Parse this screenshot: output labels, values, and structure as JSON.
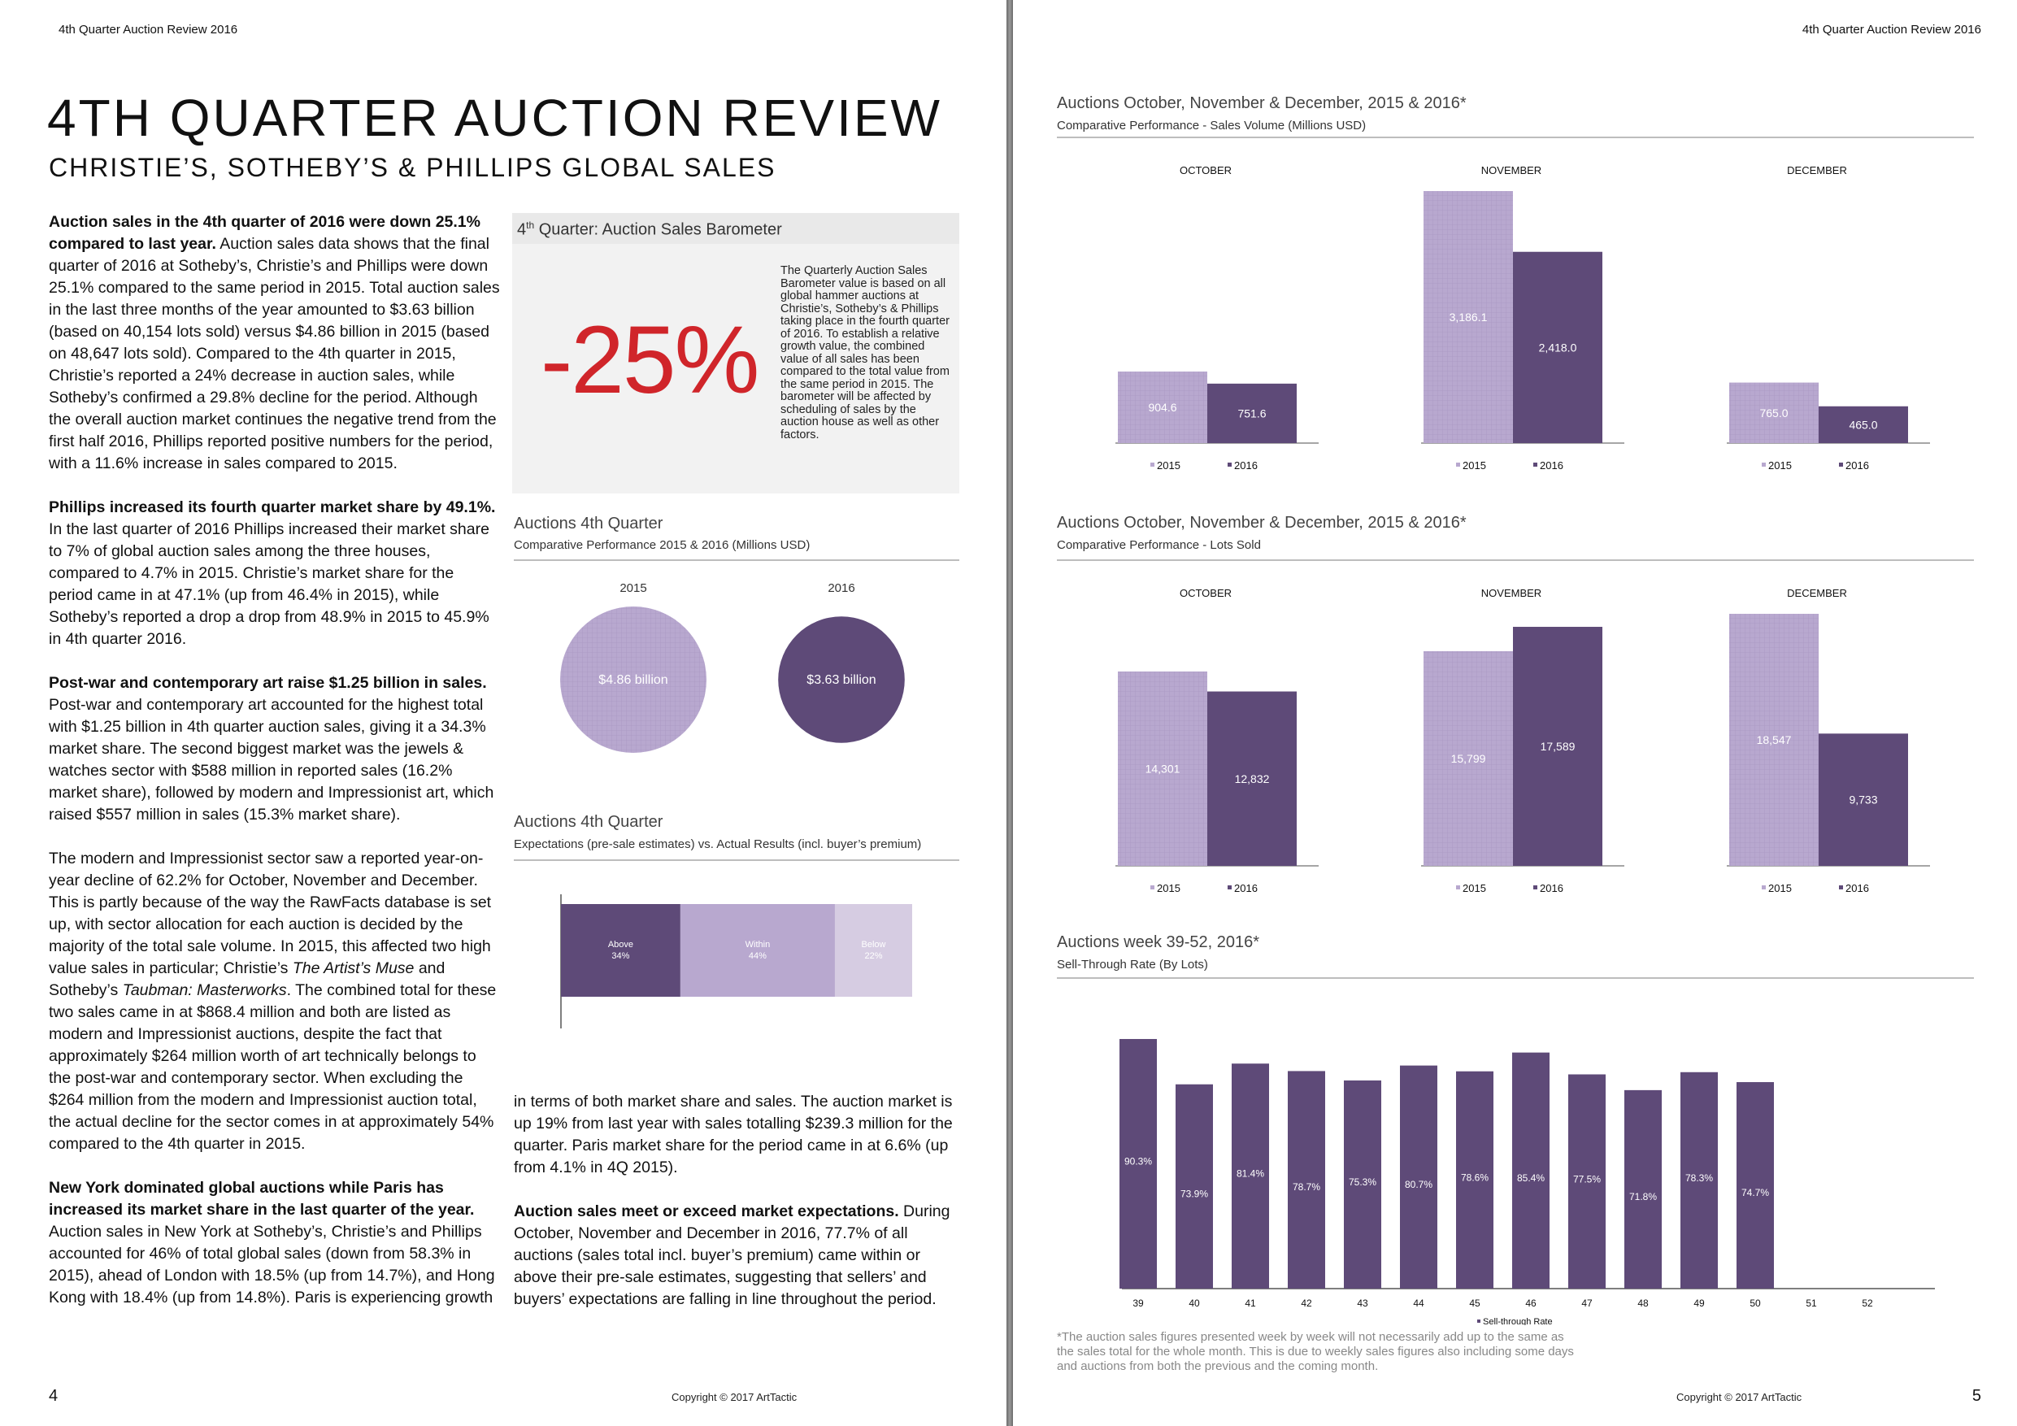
{
  "left": {
    "header": "4th Quarter Auction Review 2016",
    "title": "4TH QUARTER AUCTION REVIEW",
    "subtitle": "CHRISTIE’S, SOTHEBY’S & PHILLIPS GLOBAL SALES",
    "para1_bold": "Auction sales in the 4th quarter of 2016 were down 25.1% compared to last year.",
    "para1_text": " Auction sales data shows that the final quarter of 2016 at Sotheby’s, Christie’s and Phillips were down 25.1% compared to the same period in 2015. Total auction sales in the last three months of the year amounted to $3.63 billion (based on 40,154 lots sold) versus $4.86 billion in 2015 (based on 48,647 lots sold). Compared to the 4th quarter in 2015, Christie’s reported a 24% decrease in auction sales, while Sotheby’s confirmed a 29.8% decline for the period. Although the overall auction market continues the negative trend from the first half 2016, Phillips reported positive numbers for the period, with a 11.6% increase in sales compared to 2015.",
    "para2_bold": "Phillips increased its fourth quarter market share by 49.1%.",
    "para2_text": "In the last quarter of 2016 Phillips increased their market share to 7% of global auction sales among the three houses, compared to 4.7% in 2015. Christie’s market share for the period came in at 47.1% (up from 46.4% in 2015), while Sotheby’s reported a drop a drop from 48.9% in 2015 to 45.9% in 4th quarter 2016.",
    "para3_bold": "Post-war and contemporary art raise $1.25 billion in sales.",
    "para3_text": "Post-war and contemporary art accounted for the highest total with $1.25 billion in 4th quarter auction sales, giving it a 34.3% market share. The second biggest market was the jewels & watches sector with $588 million in reported sales (16.2% market share), followed by modern and Impressionist art, which raised $557 million in sales (15.3% market share).",
    "para4_a": "The modern and Impressionist sector saw a reported year-on-year decline of 62.2% for October, November and December. This is partly because of the way the RawFacts database is set up, with sector allocation for each auction is decided by the majority of the total sale volume. In 2015, this affected two high value sales in particular; Christie’s ",
    "para4_i1": "The Artist’s Muse",
    "para4_b": " and Sotheby’s ",
    "para4_i2": "Taubman: Masterworks",
    "para4_c": ". The combined total for these two sales came in at $868.4 million and both are listed as modern and Impressionist auctions, despite the fact that approximately $264 million worth of art technically belongs to the post-war and contemporary sector. When excluding the $264 million from the modern and Impressionist auction total, the actual decline for the sector comes in at approximately 54% compared to the 4th quarter in 2015.",
    "para5_bold": "New York dominated global auctions while Paris has increased its market share in the last quarter of the year.",
    "para5_text": " Auction sales in New York at Sotheby’s, Christie’s and Phillips accounted for 46% of total global sales (down from 58.3% in 2015), ahead of London with 18.5% (up from 14.7%), and Hong Kong with 18.4% (up from 14.8%). Paris is experiencing growth",
    "mid_para1": "in terms of both market share and sales. The auction market is up 19% from last year with sales totalling $239.3 million for the quarter. Paris market share for the period came in at 6.6% (up from 4.1% in 4Q 2015).",
    "mid_para2_bold": "Auction sales meet or exceed market expectations.",
    "mid_para2_text": " During October, November and December in 2016, 77.7% of all auctions (sales total incl. buyer’s premium) came within or above their pre-sale estimates, suggesting that sellers’ and buyers’ expectations are falling in line throughout the period.",
    "barometer": {
      "title_pre": "4",
      "title_sup": "th",
      "title_post": " Quarter: Auction Sales Barometer",
      "value": "-25%",
      "description": "The Quarterly Auction Sales Barometer value is based on all global hammer auctions at Christie’s, Sotheby’s & Phillips taking place in the fourth quarter of 2016. To establish a relative growth value, the combined value of all sales has been compared to the total value from the same period in 2015. The barometer will be affected by scheduling of sales by the auction house as well as other factors."
    },
    "circles": {
      "title": "Auctions 4th Quarter",
      "subtitle": "Comparative Performance 2015 & 2016 (Millions USD)",
      "items": [
        {
          "year": "2015",
          "label": "$4.86 billion",
          "value": 4860
        },
        {
          "year": "2016",
          "label": "$3.63 billion",
          "value": 3630
        }
      ]
    },
    "expectations": {
      "title": "Auctions 4th Quarter",
      "subtitle": "Expectations (pre-sale estimates) vs. Actual Results (incl. buyer’s premium)",
      "segments": [
        {
          "name": "Above",
          "pct_label": "34%",
          "value": 34
        },
        {
          "name": "Within",
          "pct_label": "44%",
          "value": 44
        },
        {
          "name": "Below",
          "pct_label": "22%",
          "value": 22
        }
      ]
    },
    "page_number": "4",
    "copyright": "Copyright © 2017 ArtTactic"
  },
  "right": {
    "header": "4th Quarter Auction Review 2016",
    "sales_title": "Auctions October, November & December, 2015 & 2016*",
    "sales_subtitle": "Comparative Performance - Sales Volume (Millions USD)",
    "lots_title": "Auctions October, November & December, 2015 & 2016*",
    "lots_subtitle": "Comparative Performance - Lots Sold",
    "week_title": "Auctions week 39-52, 2016*",
    "week_subtitle": "Sell-Through Rate (By Lots)",
    "week_legend": "Sell-through Rate",
    "footnote": "*The auction sales figures presented week by week will not necessarily add up to the same as the sales total for the whole month. This is due to weekly sales figures also including some days and auctions from both the previous and the coming month.",
    "page_number": "5",
    "copyright": "Copyright © 2017 ArtTactic"
  },
  "colors": {
    "light": "#b8a8cf",
    "dark": "#5e4a78",
    "lighter": "#d6cce2",
    "red": "#d0252a"
  },
  "chart_data": [
    {
      "type": "bar",
      "title": "Auctions October, November & December, 2015 & 2016*",
      "subtitle": "Comparative Performance - Sales Volume (Millions USD)",
      "panels": [
        {
          "month": "OCTOBER",
          "values": [
            {
              "series": "2015",
              "value": 904.6,
              "label": "904.6"
            },
            {
              "series": "2016",
              "value": 751.6,
              "label": "751.6"
            }
          ]
        },
        {
          "month": "NOVEMBER",
          "values": [
            {
              "series": "2015",
              "value": 3186.1,
              "label": "3,186.1"
            },
            {
              "series": "2016",
              "value": 2418.0,
              "label": "2,418.0"
            }
          ]
        },
        {
          "month": "DECEMBER",
          "values": [
            {
              "series": "2015",
              "value": 765.0,
              "label": "765.0"
            },
            {
              "series": "2016",
              "value": 465.0,
              "label": "465.0"
            }
          ]
        }
      ],
      "legend": [
        "2015",
        "2016"
      ]
    },
    {
      "type": "bar",
      "title": "Auctions October, November & December, 2015 & 2016*",
      "subtitle": "Comparative Performance - Lots Sold",
      "panels": [
        {
          "month": "OCTOBER",
          "values": [
            {
              "series": "2015",
              "value": 14301,
              "label": "14,301"
            },
            {
              "series": "2016",
              "value": 12832,
              "label": "12,832"
            }
          ]
        },
        {
          "month": "NOVEMBER",
          "values": [
            {
              "series": "2015",
              "value": 15799,
              "label": "15,799"
            },
            {
              "series": "2016",
              "value": 17589,
              "label": "17,589"
            }
          ]
        },
        {
          "month": "DECEMBER",
          "values": [
            {
              "series": "2015",
              "value": 18547,
              "label": "18,547"
            },
            {
              "series": "2016",
              "value": 9733,
              "label": "9,733"
            }
          ]
        }
      ],
      "legend": [
        "2015",
        "2016"
      ]
    },
    {
      "type": "bar",
      "title": "Auctions week 39-52, 2016*",
      "subtitle": "Sell-Through Rate (By Lots)",
      "categories": [
        "39",
        "40",
        "41",
        "42",
        "43",
        "44",
        "45",
        "46",
        "47",
        "48",
        "49",
        "50",
        "51",
        "52"
      ],
      "values": [
        90.3,
        73.9,
        81.4,
        78.7,
        75.3,
        80.7,
        78.6,
        85.4,
        77.5,
        71.8,
        78.3,
        74.7,
        null,
        null
      ],
      "labels": [
        "90.3%",
        "73.9%",
        "81.4%",
        "78.7%",
        "75.3%",
        "80.7%",
        "78.6%",
        "85.4%",
        "77.5%",
        "71.8%",
        "78.3%",
        "74.7%",
        "",
        ""
      ],
      "legend": [
        "Sell-through Rate"
      ]
    }
  ]
}
